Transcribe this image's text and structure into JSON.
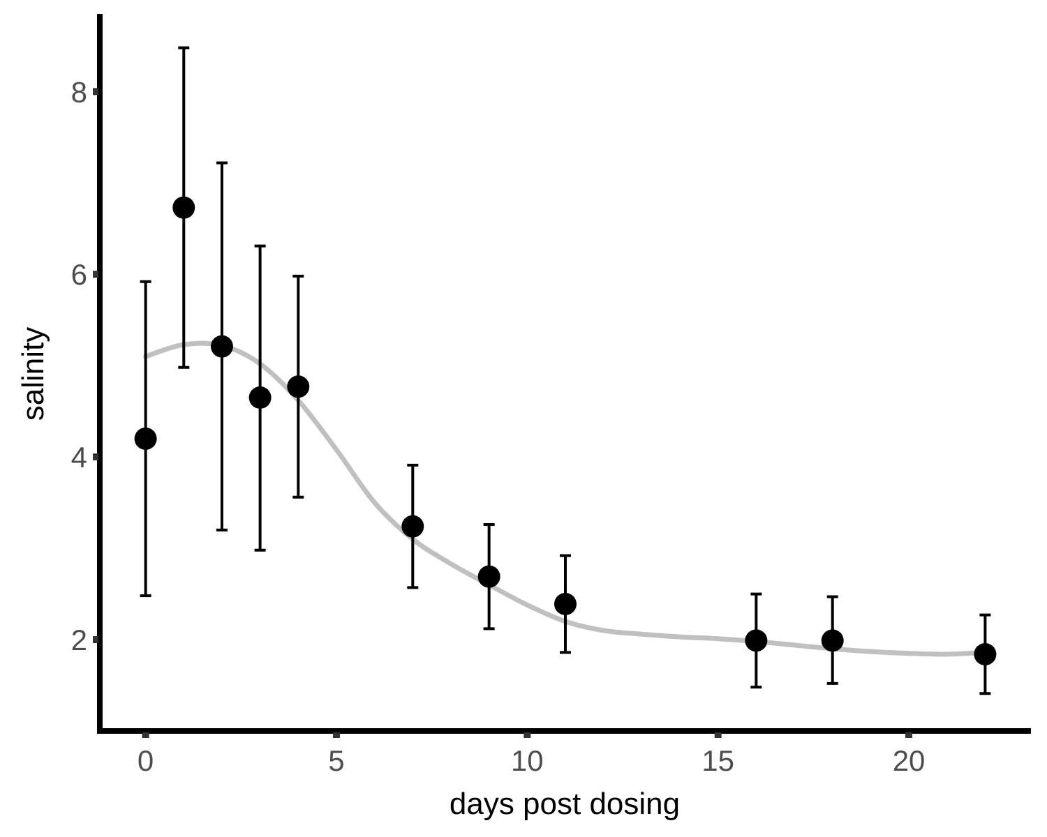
{
  "chart_data": {
    "type": "scatter",
    "xlabel": "days post dosing",
    "ylabel": "salinity",
    "xlim": [
      -1.2,
      23.2
    ],
    "ylim": [
      1.0,
      8.85
    ],
    "x_ticks": [
      0,
      5,
      10,
      15,
      20
    ],
    "y_ticks": [
      2,
      4,
      6,
      8
    ],
    "grid": false,
    "legend": "none",
    "points": [
      {
        "x": 0,
        "y": 4.2,
        "ymin": 2.48,
        "ymax": 5.92
      },
      {
        "x": 1,
        "y": 6.73,
        "ymin": 4.98,
        "ymax": 8.48
      },
      {
        "x": 2,
        "y": 5.21,
        "ymin": 3.2,
        "ymax": 7.22
      },
      {
        "x": 3,
        "y": 4.65,
        "ymin": 2.98,
        "ymax": 6.31
      },
      {
        "x": 4,
        "y": 4.77,
        "ymin": 3.56,
        "ymax": 5.98
      },
      {
        "x": 7,
        "y": 3.24,
        "ymin": 2.57,
        "ymax": 3.91
      },
      {
        "x": 9,
        "y": 2.69,
        "ymin": 2.12,
        "ymax": 3.26
      },
      {
        "x": 11,
        "y": 2.39,
        "ymin": 1.86,
        "ymax": 2.92
      },
      {
        "x": 16,
        "y": 1.99,
        "ymin": 1.48,
        "ymax": 2.5
      },
      {
        "x": 18,
        "y": 1.99,
        "ymin": 1.52,
        "ymax": 2.47
      },
      {
        "x": 22,
        "y": 1.84,
        "ymin": 1.41,
        "ymax": 2.27
      }
    ],
    "trend": {
      "x": [
        0,
        1,
        2,
        3,
        4,
        5,
        6,
        7,
        8,
        9,
        10,
        11,
        12,
        13,
        14,
        15,
        16,
        17,
        18,
        19,
        20,
        21,
        22
      ],
      "y": [
        5.1,
        5.23,
        5.22,
        5.02,
        4.62,
        4.08,
        3.5,
        3.1,
        2.83,
        2.6,
        2.38,
        2.2,
        2.1,
        2.06,
        2.03,
        2.01,
        1.98,
        1.94,
        1.9,
        1.87,
        1.85,
        1.84,
        1.86
      ]
    },
    "colors": {
      "points": "#000000",
      "errorbars": "#000000",
      "trend": "#c0c0c0",
      "axis": "#000000",
      "tick_labels": "#4d4d4d",
      "ticks": "#333333"
    }
  }
}
